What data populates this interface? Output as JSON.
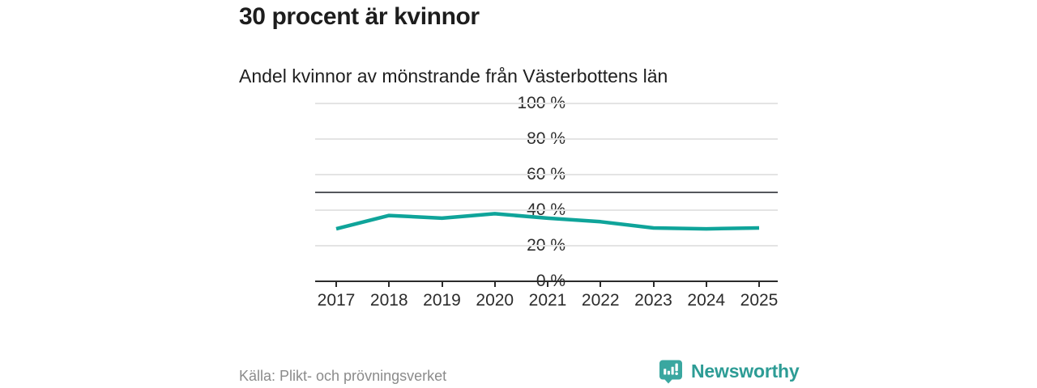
{
  "header": {
    "title": "30 procent är kvinnor",
    "subtitle": "Andel kvinnor av mönstrande från Västerbottens län"
  },
  "chart_data": {
    "type": "line",
    "title": "30 procent är kvinnor",
    "subtitle": "Andel kvinnor av mönstrande från Västerbottens län",
    "categories": [
      "2017",
      "2018",
      "2019",
      "2020",
      "2021",
      "2022",
      "2023",
      "2024",
      "2025"
    ],
    "series": [
      {
        "name": "Andel kvinnor",
        "values": [
          29.5,
          37,
          35.5,
          38,
          35.5,
          33.5,
          30,
          29.5,
          30
        ],
        "unit": "%",
        "color": "#0fa49a"
      }
    ],
    "yticks": [
      0,
      20,
      40,
      60,
      80,
      100
    ],
    "ytick_suffix": " %",
    "ylim": [
      0,
      100
    ],
    "reference_line": {
      "value": 50,
      "color": "#55575c"
    },
    "grid": true,
    "legend_position": "none",
    "xlabel": "",
    "ylabel": ""
  },
  "footer": {
    "source": "Källa: Plikt- och prövningsverket",
    "brand": "Newsworthy"
  },
  "colors": {
    "line": "#0fa49a",
    "grid": "#e4e4e4",
    "reference": "#55575c",
    "axis": "#2b2b2b",
    "brand_teal": "#2d9c95",
    "logo_teal": "#3aa7a0"
  },
  "icons": {
    "logo": "newsworthy-bar-chart-speech-bubble-icon"
  }
}
